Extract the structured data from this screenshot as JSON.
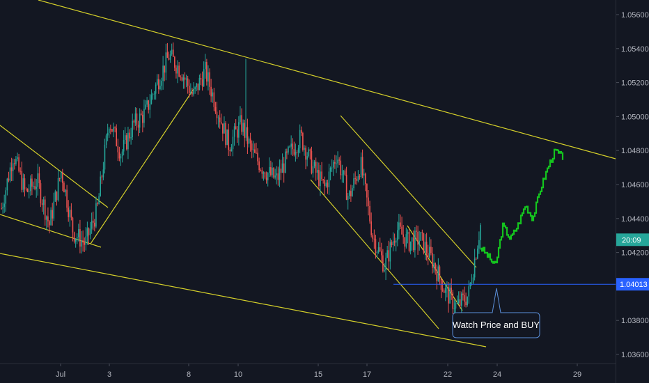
{
  "chart_data": {
    "type": "candlestick",
    "instrument": "",
    "colors": {
      "background": "#131722",
      "up": "#26a69a",
      "down": "#ef5350",
      "trendline": "#d4cf2a",
      "projection": "#14c41e",
      "level_line": "#2962ff",
      "axis_text": "#b2b5be",
      "note_border": "#5b8fd9",
      "price_tag": "#26a69a",
      "level_tag": "#2962ff"
    },
    "y_axis": {
      "ticks": [
        "1.05600",
        "1.05400",
        "1.05200",
        "1.05000",
        "1.04800",
        "1.04600",
        "1.04400",
        "1.04200",
        "1.03800",
        "1.03600"
      ],
      "range": [
        1.0356,
        1.0572
      ]
    },
    "x_axis": {
      "ticks": [
        "Jul",
        "3",
        "8",
        "10",
        "15",
        "17",
        "22",
        "24",
        "29"
      ]
    },
    "price_path": [
      {
        "x": "Jun 28",
        "y": 1.0446
      },
      {
        "x": "Jun 28 (2)",
        "y": 1.0478
      },
      {
        "x": "Jun 29",
        "y": 1.0455
      },
      {
        "x": "Jun 30",
        "y": 1.0462
      },
      {
        "x": "Jul 1",
        "y": 1.0436
      },
      {
        "x": "Jul 1 (2)",
        "y": 1.0468
      },
      {
        "x": "Jul 2",
        "y": 1.0432
      },
      {
        "x": "Jul 2 (2)",
        "y": 1.0425
      },
      {
        "x": "Jul 3",
        "y": 1.0445
      },
      {
        "x": "Jul 3 (2)",
        "y": 1.0498
      },
      {
        "x": "Jul 4",
        "y": 1.0478
      },
      {
        "x": "Jul 5",
        "y": 1.0495
      },
      {
        "x": "Jul 6",
        "y": 1.0502
      },
      {
        "x": "Jul 7",
        "y": 1.052
      },
      {
        "x": "Jul 7 (2)",
        "y": 1.0536
      },
      {
        "x": "Jul 8",
        "y": 1.0527
      },
      {
        "x": "Jul 8 (2)",
        "y": 1.0512
      },
      {
        "x": "Jul 9",
        "y": 1.0527
      },
      {
        "x": "Jul 9 (2)",
        "y": 1.0505
      },
      {
        "x": "Jul 10",
        "y": 1.0483
      },
      {
        "x": "Jul 10 (2)",
        "y": 1.0496
      },
      {
        "x": "Jul 11",
        "y": 1.0478
      },
      {
        "x": "Jul 12",
        "y": 1.0468
      },
      {
        "x": "Jul 13",
        "y": 1.0463
      },
      {
        "x": "Jul 14",
        "y": 1.0478
      },
      {
        "x": "Jul 15",
        "y": 1.0488
      },
      {
        "x": "Jul 15 (2)",
        "y": 1.047
      },
      {
        "x": "Jul 16",
        "y": 1.0458
      },
      {
        "x": "Jul 16 (2)",
        "y": 1.0478
      },
      {
        "x": "Jul 17",
        "y": 1.0452
      },
      {
        "x": "Jul 17 (2)",
        "y": 1.0472
      },
      {
        "x": "Jul 18",
        "y": 1.043
      },
      {
        "x": "Jul 18 (2)",
        "y": 1.0412
      },
      {
        "x": "Jul 19",
        "y": 1.0434
      },
      {
        "x": "Jul 19 (2)",
        "y": 1.0426
      },
      {
        "x": "Jul 20",
        "y": 1.0428
      },
      {
        "x": "Jul 21",
        "y": 1.0415
      },
      {
        "x": "Jul 21 (2)",
        "y": 1.0398
      },
      {
        "x": "Jul 22",
        "y": 1.0388
      },
      {
        "x": "Jul 22 (2)",
        "y": 1.0395
      },
      {
        "x": "Jul 23",
        "y": 1.0436
      }
    ],
    "projection_path": [
      {
        "x": "Jul 23",
        "y": 1.0423
      },
      {
        "x": "Jul 23 (2)",
        "y": 1.0418
      },
      {
        "x": "Jul 24",
        "y": 1.0412
      },
      {
        "x": "Jul 24 (2)",
        "y": 1.0436
      },
      {
        "x": "Jul 25",
        "y": 1.0428
      },
      {
        "x": "Jul 25 (2)",
        "y": 1.0436
      },
      {
        "x": "Jul 26",
        "y": 1.0448
      },
      {
        "x": "Jul 26 (2)",
        "y": 1.044
      },
      {
        "x": "Jul 27",
        "y": 1.0457
      },
      {
        "x": "Jul 27 (2)",
        "y": 1.047
      },
      {
        "x": "Jul 28",
        "y": 1.048
      },
      {
        "x": "Jul 28 (2)",
        "y": 1.0476
      }
    ],
    "horizontal_level": {
      "value": 1.04013,
      "label": "1.04013"
    },
    "price_tag": {
      "label": "20:09",
      "value": 1.0423
    },
    "annotation": {
      "text": "Watch Price and BUY"
    }
  }
}
